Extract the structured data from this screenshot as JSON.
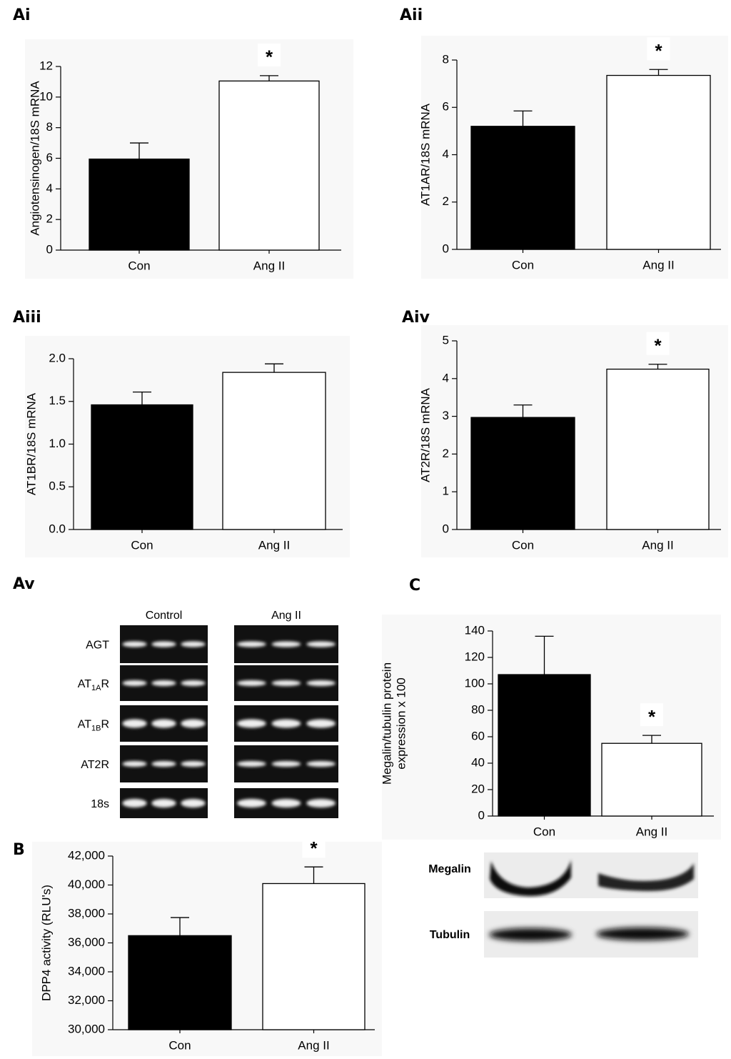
{
  "chart_data": [
    {
      "type": "bar",
      "panel": "Ai",
      "ylabel": [
        "Angiotensinogen/18S mRNA"
      ],
      "categories": [
        "Con",
        "Ang II"
      ],
      "values": [
        5.95,
        11.05
      ],
      "errors": [
        1.05,
        0.35
      ],
      "colors": [
        "#000000",
        "#ffffff"
      ],
      "significance": [
        null,
        "*"
      ],
      "ylim": [
        0,
        12
      ],
      "yticks": [
        0,
        2,
        4,
        6,
        8,
        10,
        12
      ]
    },
    {
      "type": "bar",
      "panel": "Aii",
      "ylabel": [
        "AT1AR/18S mRNA"
      ],
      "categories": [
        "Con",
        "Ang II"
      ],
      "values": [
        5.2,
        7.35
      ],
      "errors": [
        0.65,
        0.25
      ],
      "colors": [
        "#000000",
        "#ffffff"
      ],
      "significance": [
        null,
        "*"
      ],
      "ylim": [
        0,
        8
      ],
      "yticks": [
        0,
        2,
        4,
        6,
        8
      ]
    },
    {
      "type": "bar",
      "panel": "Aiii",
      "ylabel": [
        "AT1BR/18S mRNA"
      ],
      "categories": [
        "Con",
        "Ang II"
      ],
      "values": [
        1.46,
        1.84
      ],
      "errors": [
        0.15,
        0.1
      ],
      "colors": [
        "#000000",
        "#ffffff"
      ],
      "significance": [
        null,
        null
      ],
      "ylim": [
        0,
        2
      ],
      "yticks": [
        {
          "value": 0,
          "label": "0.0"
        },
        0.5,
        {
          "value": 1,
          "label": "1.0"
        },
        1.5,
        {
          "value": 2,
          "label": "2.0"
        }
      ]
    },
    {
      "type": "bar",
      "panel": "Aiv",
      "ylabel": [
        "AT2R/18S mRNA"
      ],
      "categories": [
        "Con",
        "Ang II"
      ],
      "values": [
        2.97,
        4.25
      ],
      "errors": [
        0.33,
        0.13
      ],
      "colors": [
        "#000000",
        "#ffffff"
      ],
      "significance": [
        null,
        "*"
      ],
      "ylim": [
        0,
        5
      ],
      "yticks": [
        0,
        1,
        2,
        3,
        4,
        5
      ]
    },
    {
      "type": "bar",
      "panel": "B",
      "ylabel": [
        "DPP4 activity (RLU's)"
      ],
      "categories": [
        "Con",
        "Ang II"
      ],
      "values": [
        36500,
        40100
      ],
      "errors": [
        1250,
        1150
      ],
      "colors": [
        "#000000",
        "#ffffff"
      ],
      "significance": [
        null,
        "*"
      ],
      "ylim": [
        30000,
        42000
      ],
      "yticks": [
        {
          "value": 30000,
          "label": "30,000"
        },
        {
          "value": 32000,
          "label": "32,000"
        },
        {
          "value": 34000,
          "label": "34,000"
        },
        {
          "value": 36000,
          "label": "36,000"
        },
        {
          "value": 38000,
          "label": "38,000"
        },
        {
          "value": 40000,
          "label": "40,000"
        },
        {
          "value": 42000,
          "label": "42,000"
        }
      ]
    },
    {
      "type": "bar",
      "panel": "C",
      "ylabel": [
        "Megalin/tubulin protein",
        "expression x 100"
      ],
      "categories": [
        "Con",
        "Ang II"
      ],
      "values": [
        107,
        55
      ],
      "errors": [
        29,
        6
      ],
      "colors": [
        "#000000",
        "#ffffff"
      ],
      "significance": [
        null,
        "*"
      ],
      "ylim": [
        0,
        140
      ],
      "yticks": [
        0,
        20,
        40,
        60,
        80,
        100,
        120,
        140
      ]
    }
  ],
  "gel": {
    "panel": "Av",
    "groups": [
      "Control",
      "Ang II"
    ],
    "rows": [
      {
        "text": "AGT"
      },
      {
        "text": "AT",
        "sub": "1A",
        "after": "R"
      },
      {
        "text": "AT",
        "sub": "1B",
        "after": "R"
      },
      {
        "text": "AT2R"
      },
      {
        "text": "18s"
      }
    ]
  },
  "blot": {
    "rows": [
      "Megalin",
      "Tubulin"
    ]
  }
}
